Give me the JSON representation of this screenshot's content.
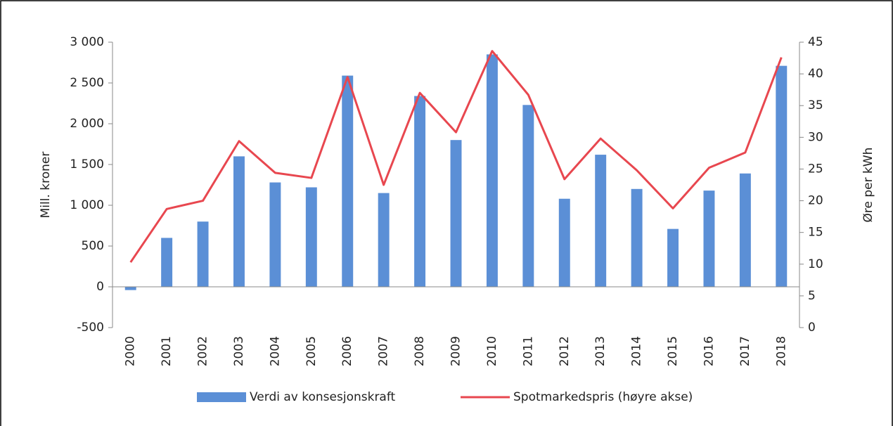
{
  "chart_data": {
    "type": "bar",
    "y_label": "Mill. kroner",
    "y2_label": "Øre per kWh",
    "categories": [
      "2000",
      "2001",
      "2002",
      "2003",
      "2004",
      "2005",
      "2006",
      "2007",
      "2008",
      "2009",
      "2010",
      "2011",
      "2012",
      "2013",
      "2014",
      "2015",
      "2016",
      "2017",
      "2018"
    ],
    "series": [
      {
        "name": "Verdi av konsesjonskraft",
        "type": "bar",
        "color": "#5b8fd6",
        "values": [
          -40,
          600,
          800,
          1600,
          1280,
          1220,
          2590,
          1150,
          2340,
          1800,
          2850,
          2230,
          1080,
          1620,
          1200,
          710,
          1180,
          1390,
          2710
        ]
      },
      {
        "name": "Spotmarkedspris (høyre akse)",
        "type": "line",
        "axis": "y2",
        "color": "#e8474f",
        "values": [
          10.3,
          18.7,
          20,
          29.4,
          24.4,
          23.6,
          39.5,
          22.5,
          37,
          30.8,
          43.6,
          36.7,
          23.4,
          29.8,
          24.8,
          18.8,
          25.2,
          27.6,
          42.6
        ]
      }
    ],
    "ylim": [
      -500,
      3000
    ],
    "yticks": [
      -500,
      0,
      500,
      {
        "value": 1000,
        "label": "1 000"
      },
      {
        "value": 1500,
        "label": "1 500"
      },
      {
        "value": 2000,
        "label": "2 000"
      },
      {
        "value": 2500,
        "label": "2 500"
      },
      {
        "value": 3000,
        "label": "3 000"
      }
    ],
    "y2lim": [
      0,
      45
    ],
    "y2ticks": [
      0,
      5,
      10,
      15,
      20,
      25,
      30,
      35,
      40,
      45
    ],
    "legend": "bottom",
    "grid": false
  }
}
